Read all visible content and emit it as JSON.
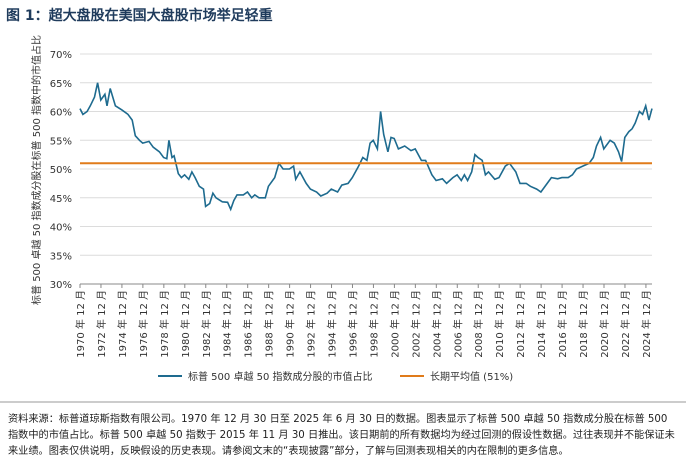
{
  "chart_data": {
    "type": "line",
    "title": "图 1：超大盘股在美国大盘股市场举足轻重",
    "y_label": "标普 500 卓越 50 指数成分股在标普 500 指数中的市值占比",
    "xlim": [
      1970.92,
      2025.5
    ],
    "ylim": [
      30,
      70
    ],
    "yticks": [
      {
        "value": 30,
        "label": "30%"
      },
      {
        "value": 35,
        "label": "35%"
      },
      {
        "value": 40,
        "label": "40%"
      },
      {
        "value": 45,
        "label": "45%"
      },
      {
        "value": 50,
        "label": "50%"
      },
      {
        "value": 55,
        "label": "55%"
      },
      {
        "value": 60,
        "label": "60%"
      },
      {
        "value": 65,
        "label": "65%"
      },
      {
        "value": 70,
        "label": "70%"
      }
    ],
    "xticks": [
      {
        "value": 1970.92,
        "label": "1970 年 12 月"
      },
      {
        "value": 1972.92,
        "label": "1972 年 12 月"
      },
      {
        "value": 1974.92,
        "label": "1974 年 12 月"
      },
      {
        "value": 1976.92,
        "label": "1976 年 12 月"
      },
      {
        "value": 1978.92,
        "label": "1978 年 12 月"
      },
      {
        "value": 1980.92,
        "label": "1980 年 12 月"
      },
      {
        "value": 1982.92,
        "label": "1982 年 12 月"
      },
      {
        "value": 1984.92,
        "label": "1984 年 12 月"
      },
      {
        "value": 1986.92,
        "label": "1986 年 12 月"
      },
      {
        "value": 1988.92,
        "label": "1988 年 12 月"
      },
      {
        "value": 1990.92,
        "label": "1990 年 12 月"
      },
      {
        "value": 1992.92,
        "label": "1992 年 12 月"
      },
      {
        "value": 1994.92,
        "label": "1994 年 12 月"
      },
      {
        "value": 1996.92,
        "label": "1996 年 12 月"
      },
      {
        "value": 1998.92,
        "label": "1998 年 12 月"
      },
      {
        "value": 2000.92,
        "label": "2000 年 12 月"
      },
      {
        "value": 2002.92,
        "label": "2002 年 12 月"
      },
      {
        "value": 2004.92,
        "label": "2004 年 12 月"
      },
      {
        "value": 2006.92,
        "label": "2006 年 12 月"
      },
      {
        "value": 2008.92,
        "label": "2008 年 12 月"
      },
      {
        "value": 2010.92,
        "label": "2010 年 12 月"
      },
      {
        "value": 2012.92,
        "label": "2012 年 12 月"
      },
      {
        "value": 2014.92,
        "label": "2014 年 12 月"
      },
      {
        "value": 2016.92,
        "label": "2016 年 12 月"
      },
      {
        "value": 2018.92,
        "label": "2018 年 12 月"
      },
      {
        "value": 2020.92,
        "label": "2020 年 12 月"
      },
      {
        "value": 2022.92,
        "label": "2022 年 12 月"
      },
      {
        "value": 2024.92,
        "label": "2024 年 12 月"
      }
    ],
    "grid": true,
    "x": [
      1970.92,
      1971.2,
      1971.6,
      1971.9,
      1972.3,
      1972.6,
      1972.9,
      1973.3,
      1973.5,
      1973.8,
      1974.3,
      1974.9,
      1975.5,
      1975.9,
      1976.2,
      1976.6,
      1976.9,
      1977.5,
      1977.9,
      1978.5,
      1978.9,
      1979.2,
      1979.4,
      1979.7,
      1979.9,
      1980.3,
      1980.6,
      1980.9,
      1981.3,
      1981.6,
      1981.9,
      1982.3,
      1982.7,
      1982.9,
      1983.3,
      1983.6,
      1983.9,
      1984.5,
      1985.0,
      1985.3,
      1985.6,
      1985.9,
      1986.5,
      1986.9,
      1987.3,
      1987.6,
      1988.0,
      1988.6,
      1988.9,
      1989.5,
      1989.9,
      1990.3,
      1990.9,
      1991.3,
      1991.5,
      1991.9,
      1992.5,
      1992.9,
      1993.5,
      1993.9,
      1994.5,
      1994.9,
      1995.5,
      1995.9,
      1996.5,
      1996.9,
      1997.5,
      1997.9,
      1998.3,
      1998.6,
      1998.9,
      1999.3,
      1999.6,
      1999.9,
      2000.3,
      2000.6,
      2000.9,
      2001.3,
      2001.9,
      2002.5,
      2002.9,
      2003.5,
      2003.9,
      2004.5,
      2004.9,
      2005.5,
      2005.9,
      2006.5,
      2006.9,
      2007.3,
      2007.6,
      2007.9,
      2008.3,
      2008.6,
      2008.9,
      2009.3,
      2009.6,
      2009.9,
      2010.5,
      2010.9,
      2011.5,
      2011.9,
      2012.5,
      2012.9,
      2013.5,
      2013.9,
      2014.5,
      2014.9,
      2015.5,
      2015.9,
      2016.5,
      2016.9,
      2017.5,
      2017.9,
      2018.3,
      2018.9,
      2019.5,
      2019.9,
      2020.2,
      2020.6,
      2020.9,
      2021.5,
      2021.9,
      2022.3,
      2022.6,
      2022.9,
      2023.3,
      2023.6,
      2023.9,
      2024.3,
      2024.6,
      2024.9,
      2025.2,
      2025.5
    ],
    "series": [
      {
        "name": "标普 500 卓越 50 指数成分股的市值占比",
        "color": "#1e6b8f",
        "values": [
          60.5,
          59.5,
          60,
          61,
          62.5,
          65,
          62,
          63,
          61,
          64,
          61,
          60.3,
          59.5,
          58.5,
          55.8,
          55,
          54.5,
          54.8,
          53.8,
          53,
          52,
          51.8,
          55,
          52,
          52.3,
          49.2,
          48.5,
          49,
          48.2,
          49.5,
          48.5,
          47,
          46.5,
          43.5,
          44,
          45.8,
          45,
          44.3,
          44.2,
          43,
          44.5,
          45.5,
          45.5,
          46,
          45,
          45.5,
          45,
          45,
          47,
          48.5,
          51,
          50,
          50,
          50.5,
          48.2,
          49.5,
          47.5,
          46.5,
          46,
          45.3,
          45.8,
          46.5,
          46,
          47.2,
          47.5,
          48.5,
          50.5,
          52,
          51.5,
          54.5,
          55,
          53.5,
          60,
          56,
          53,
          55.5,
          55.3,
          53.5,
          54,
          53.2,
          53.5,
          51.5,
          51.5,
          49,
          48,
          48.3,
          47.5,
          48.5,
          49,
          48,
          49,
          48,
          49.5,
          52.5,
          52,
          51.5,
          49,
          49.5,
          48.2,
          48.5,
          50.5,
          51,
          49.5,
          47.5,
          47.5,
          47,
          46.5,
          46,
          47.5,
          48.5,
          48.3,
          48.5,
          48.5,
          49,
          50,
          50.5,
          51,
          52,
          54,
          55.5,
          53.5,
          55,
          54.5,
          53,
          51.3,
          55.5,
          56.5,
          57,
          58,
          60,
          59.5,
          61,
          58.5,
          60.5
        ]
      }
    ],
    "reference_line": {
      "name": "长期平均值 (51%)",
      "value": 51,
      "color": "#e07b1a"
    }
  },
  "footnote": "资料来源：标普道琼斯指数有限公司。1970 年 12 月 30 日至 2025 年 6 月 30 日的数据。图表显示了标普 500 卓越 50 指数成分股在标普 500 指数中的市值占比。标普 500 卓越 50 指数于 2015 年 11 月 30 日推出。该日期前的所有数据均为经过回测的假设性数据。过往表现并不能保证未来业绩。图表仅供说明，反映假设的历史表现。请参阅文末的“表现披露”部分，了解与回测表现相关的内在限制的更多信息。"
}
